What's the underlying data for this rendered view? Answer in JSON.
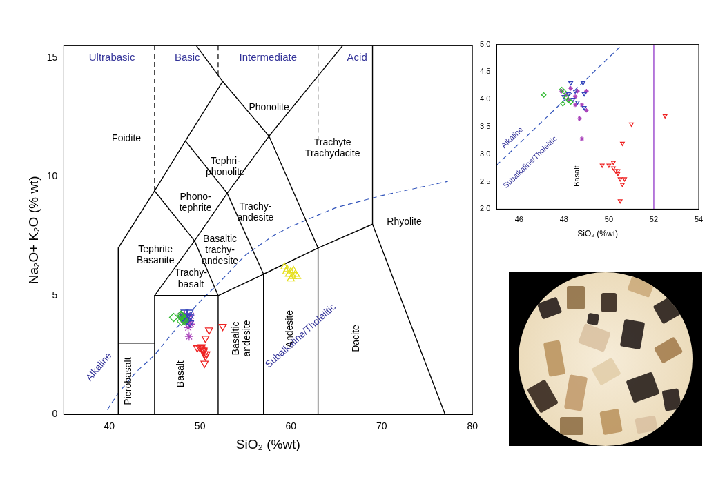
{
  "chart_data": [
    {
      "type": "scatter",
      "x_label": "SiO₂ (%wt)",
      "y_label": "Na₂O+ K₂O (% wt)",
      "xlim": [
        35,
        80
      ],
      "ylim": [
        0,
        15.5
      ],
      "xticks": [
        40,
        50,
        60,
        70,
        80
      ],
      "yticks": [
        0,
        5,
        10,
        15
      ],
      "grid": false,
      "boundaries": [
        {
          "points": [
            [
              41,
              0
            ],
            [
              41,
              7
            ],
            [
              45,
              9.4
            ],
            [
              48.4,
              11.5
            ],
            [
              52.5,
              14
            ],
            [
              57.6,
              11.7
            ],
            [
              63,
              7
            ],
            [
              69,
              8
            ],
            [
              77,
              0
            ]
          ],
          "color": "#000000",
          "line_style": "solid"
        },
        {
          "points": [
            [
              41,
              3
            ],
            [
              45,
              3
            ]
          ],
          "color": "#000000",
          "line_style": "solid"
        },
        {
          "points": [
            [
              45,
              0
            ],
            [
              45,
              5
            ],
            [
              52,
              5
            ],
            [
              52,
              0
            ]
          ],
          "color": "#000000",
          "line_style": "solid"
        },
        {
          "points": [
            [
              45,
              5
            ],
            [
              49.4,
              7.3
            ],
            [
              52,
              5
            ]
          ],
          "color": "#000000",
          "line_style": "solid"
        },
        {
          "points": [
            [
              52,
              5
            ],
            [
              57,
              5.9
            ],
            [
              57,
              0
            ]
          ],
          "color": "#000000",
          "line_style": "solid"
        },
        {
          "points": [
            [
              57,
              5.9
            ],
            [
              63,
              7
            ],
            [
              63,
              0
            ]
          ],
          "color": "#000000",
          "line_style": "solid"
        },
        {
          "points": [
            [
              45,
              9.4
            ],
            [
              49.4,
              7.3
            ],
            [
              53,
              9.3
            ],
            [
              57.6,
              11.7
            ]
          ],
          "color": "#000000",
          "line_style": "solid"
        },
        {
          "points": [
            [
              48.4,
              11.5
            ],
            [
              53,
              9.3
            ],
            [
              57,
              5.9
            ]
          ],
          "color": "#000000",
          "line_style": "solid"
        },
        {
          "points": [
            [
              52.5,
              14
            ],
            [
              49.6,
              15.5
            ]
          ],
          "color": "#000000",
          "line_style": "solid"
        },
        {
          "points": [
            [
              57.6,
              11.7
            ],
            [
              65.7,
              15.5
            ]
          ],
          "color": "#000000",
          "line_style": "solid"
        },
        {
          "points": [
            [
              69,
              8
            ],
            [
              69,
              15.5
            ]
          ],
          "color": "#000000",
          "line_style": "solid"
        },
        {
          "points": [
            [
              45,
              9.4
            ],
            [
              45,
              15.5
            ]
          ],
          "color": "#000000",
          "line_style": "dashed"
        },
        {
          "points": [
            [
              52,
              14.26
            ],
            [
              52,
              15.5
            ]
          ],
          "color": "#000000",
          "line_style": "dashed"
        },
        {
          "points": [
            [
              63,
              11.5
            ],
            [
              63,
              15.5
            ]
          ],
          "color": "#000000",
          "line_style": "dashed"
        },
        {
          "points": [
            [
              39.8,
              0.2
            ],
            [
              41,
              0.9
            ],
            [
              43,
              1.8
            ],
            [
              45,
              2.5
            ],
            [
              48,
              3.9
            ],
            [
              50,
              4.75
            ],
            [
              52,
              5.5
            ],
            [
              55,
              6.7
            ],
            [
              58,
              7.5
            ],
            [
              60,
              7.9
            ],
            [
              65,
              8.7
            ],
            [
              70,
              9.2
            ],
            [
              77.3,
              9.8
            ]
          ],
          "color": "#3355bb",
          "line_style": "dashed"
        }
      ],
      "annotations": [
        {
          "text": "Ultrabasic",
          "x": 40.3,
          "y": 15.0,
          "color": "#333399"
        },
        {
          "text": "Basic",
          "x": 48.6,
          "y": 15.0,
          "color": "#333399"
        },
        {
          "text": "Intermediate",
          "x": 57.5,
          "y": 15.0,
          "color": "#333399"
        },
        {
          "text": "Acid",
          "x": 67.3,
          "y": 15.0,
          "color": "#333399"
        },
        {
          "text": "Phonolite",
          "x": 57.6,
          "y": 12.9,
          "color": "#000000"
        },
        {
          "text": "Foidite",
          "x": 41.9,
          "y": 11.6,
          "color": "#000000"
        },
        {
          "text": [
            "Tephri-",
            "phonolite"
          ],
          "x": 52.8,
          "y": 10.4,
          "color": "#000000"
        },
        {
          "text": [
            "Phono-",
            "tephrite"
          ],
          "x": 49.5,
          "y": 8.9,
          "color": "#000000"
        },
        {
          "text": [
            "Trachyte",
            "Trachydacite"
          ],
          "x": 64.6,
          "y": 11.2,
          "color": "#000000"
        },
        {
          "text": [
            "Trachy-",
            "andesite"
          ],
          "x": 56.1,
          "y": 8.5,
          "color": "#000000"
        },
        {
          "text": [
            "Tephrite",
            "Basanite"
          ],
          "x": 45.1,
          "y": 6.7,
          "color": "#000000"
        },
        {
          "text": [
            "Basaltic",
            "trachy-",
            "andesite"
          ],
          "x": 52.2,
          "y": 6.9,
          "color": "#000000"
        },
        {
          "text": [
            "Trachy-",
            "basalt"
          ],
          "x": 49.0,
          "y": 5.7,
          "color": "#000000"
        },
        {
          "text": "Rhyolite",
          "x": 72.5,
          "y": 8.1,
          "color": "#000000"
        },
        {
          "text": [
            "Basaltic",
            "andesite"
          ],
          "x": 54.6,
          "y": 3.2,
          "color": "#000000"
        },
        {
          "text": "Andesite",
          "x": 59.9,
          "y": 3.6,
          "color": "#000000"
        },
        {
          "text": "Dacite",
          "x": 67.2,
          "y": 3.2,
          "color": "#000000"
        },
        {
          "text": "Basalt",
          "x": 47.9,
          "y": 1.7,
          "color": "#000000"
        },
        {
          "text": "Picrobasalt",
          "x": 42.1,
          "y": 1.4,
          "color": "#000000"
        },
        {
          "text": "Alkaline",
          "x": 38.9,
          "y": 2.0,
          "color": "#333399"
        },
        {
          "text": "Subalkaline/Tholeiitic",
          "x": 61.1,
          "y": 3.3,
          "color": "#333399"
        }
      ],
      "series": [
        {
          "color": "#33bb33",
          "marker": "diamond",
          "x": [
            47.1,
            47.9,
            48.0,
            48.1,
            47.95,
            48.2,
            48.3
          ],
          "values": [
            4.08,
            4.18,
            4.14,
            4.04,
            3.92,
            3.98,
            3.95
          ]
        },
        {
          "color": "#3344bb",
          "marker": "triangle_down",
          "x": [
            48.3,
            48.85,
            48.5,
            48.2,
            48.9,
            48.0,
            48.6,
            48.9,
            48.4
          ],
          "values": [
            4.3,
            4.3,
            4.15,
            4.1,
            4.1,
            4.05,
            3.95,
            3.85,
            4.0
          ]
        },
        {
          "color": "#aa44bb",
          "marker": "asterisk",
          "x": [
            47.9,
            48.3,
            48.6,
            49.0,
            48.5,
            48.2,
            48.8,
            49.0,
            48.7,
            48.8,
            48.1,
            48.5
          ],
          "values": [
            4.15,
            4.2,
            4.15,
            4.15,
            4.05,
            4.0,
            3.9,
            3.8,
            3.65,
            3.28,
            4.08,
            3.9
          ]
        },
        {
          "color": "#ee2222",
          "marker": "triangle_down",
          "x": [
            50.2,
            49.7,
            50.2,
            50.3,
            50.4,
            50.4,
            50.5,
            50.6,
            50.7,
            50.5,
            51.0,
            50.6,
            52.5,
            50.0
          ],
          "values": [
            2.85,
            2.8,
            2.75,
            2.7,
            2.7,
            2.65,
            2.55,
            2.45,
            2.55,
            2.15,
            3.55,
            3.2,
            3.7,
            2.8
          ]
        },
        {
          "color": "#e6e020",
          "marker": "triangle",
          "x": [
            59.3,
            59.5,
            59.8,
            60.0,
            60.2,
            60.5,
            60.0,
            60.7,
            59.6,
            60.3
          ],
          "values": [
            6.2,
            6.0,
            5.9,
            6.0,
            5.8,
            5.9,
            5.7,
            5.8,
            6.1,
            6.05
          ]
        }
      ]
    },
    {
      "type": "scatter",
      "x_label": "SiO₂ (%wt)",
      "xlim": [
        45,
        54
      ],
      "ylim": [
        2,
        5
      ],
      "xticks": [
        46,
        48,
        50,
        52,
        54
      ],
      "yticks": [
        {
          "value": 2,
          "label": "2.0"
        },
        {
          "value": 2.5,
          "label": "2.5"
        },
        {
          "value": 3,
          "label": "3.0"
        },
        {
          "value": 3.5,
          "label": "3.5"
        },
        {
          "value": 4,
          "label": "4.0"
        },
        {
          "value": 4.5,
          "label": "4.5"
        },
        {
          "value": 5,
          "label": "5.0"
        }
      ],
      "grid": false,
      "boundaries": [
        {
          "points": [
            [
              45,
              2.8
            ],
            [
              50.6,
              5
            ]
          ],
          "color": "#3355bb",
          "line_style": "dashed"
        },
        {
          "points": [
            [
              52,
              2
            ],
            [
              52,
              5
            ]
          ],
          "color": "#9944cc",
          "line_style": "solid"
        }
      ],
      "annotations": [
        {
          "text": "Alkaline",
          "x": 45.7,
          "y": 3.3,
          "color": "#333399"
        },
        {
          "text": "Subalkaline/Tholeiitic",
          "x": 46.5,
          "y": 2.85,
          "color": "#333399"
        },
        {
          "text": "Basalt",
          "x": 48.6,
          "y": 2.6,
          "color": "#000000"
        }
      ],
      "series": [
        {
          "color": "#33bb33",
          "marker": "diamond",
          "x": [
            47.1,
            47.9,
            48.0,
            48.1,
            47.95,
            48.2,
            48.3
          ],
          "values": [
            4.08,
            4.18,
            4.14,
            4.04,
            3.92,
            3.98,
            3.95
          ]
        },
        {
          "color": "#3344bb",
          "marker": "triangle_down",
          "x": [
            48.3,
            48.85,
            48.5,
            48.2,
            48.9,
            48.0,
            48.6,
            48.9,
            48.4
          ],
          "values": [
            4.3,
            4.3,
            4.15,
            4.1,
            4.1,
            4.05,
            3.95,
            3.85,
            4.0
          ]
        },
        {
          "color": "#aa44bb",
          "marker": "asterisk",
          "x": [
            47.9,
            48.3,
            48.6,
            49.0,
            48.5,
            48.2,
            48.8,
            49.0,
            48.7,
            48.8,
            48.1,
            48.5
          ],
          "values": [
            4.15,
            4.2,
            4.15,
            4.15,
            4.05,
            4.0,
            3.9,
            3.8,
            3.65,
            3.28,
            4.08,
            3.9
          ]
        },
        {
          "color": "#ee2222",
          "marker": "triangle_down",
          "x": [
            50.2,
            49.7,
            50.2,
            50.3,
            50.4,
            50.4,
            50.5,
            50.6,
            50.7,
            50.5,
            51.0,
            50.6,
            52.5,
            50.0
          ],
          "values": [
            2.85,
            2.8,
            2.75,
            2.7,
            2.7,
            2.65,
            2.55,
            2.45,
            2.55,
            2.15,
            3.55,
            3.2,
            3.7,
            2.8
          ]
        }
      ]
    }
  ]
}
